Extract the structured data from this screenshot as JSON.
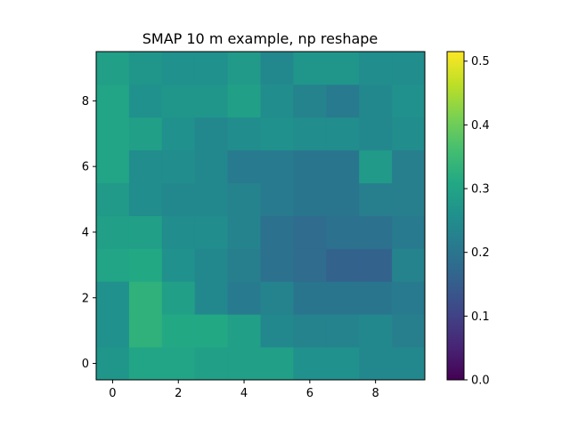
{
  "chart_data": {
    "type": "heatmap",
    "title": "SMAP 10 m example, np reshape",
    "xlabel": "",
    "ylabel": "",
    "origin": "lower",
    "xlim": [
      -0.5,
      9.5
    ],
    "ylim": [
      -0.5,
      9.5
    ],
    "x_ticks": [
      0,
      2,
      4,
      6,
      8
    ],
    "y_ticks": [
      0,
      2,
      4,
      6,
      8
    ],
    "colormap": "viridis",
    "colorbar": {
      "vmin": 0.0,
      "vmax": 0.515,
      "ticks": [
        0.0,
        0.1,
        0.2,
        0.3,
        0.4,
        0.5
      ],
      "tick_labels": [
        "0.0",
        "0.1",
        "0.2",
        "0.3",
        "0.4",
        "0.5"
      ]
    },
    "values": [
      [
        0.27,
        0.3,
        0.3,
        0.29,
        0.29,
        0.29,
        0.26,
        0.26,
        0.24,
        0.24
      ],
      [
        0.26,
        0.33,
        0.31,
        0.31,
        0.29,
        0.24,
        0.23,
        0.23,
        0.24,
        0.22
      ],
      [
        0.26,
        0.33,
        0.29,
        0.24,
        0.21,
        0.23,
        0.2,
        0.2,
        0.2,
        0.21
      ],
      [
        0.3,
        0.31,
        0.26,
        0.24,
        0.22,
        0.19,
        0.18,
        0.16,
        0.16,
        0.23
      ],
      [
        0.29,
        0.29,
        0.25,
        0.25,
        0.23,
        0.19,
        0.18,
        0.19,
        0.19,
        0.21
      ],
      [
        0.28,
        0.25,
        0.24,
        0.24,
        0.23,
        0.21,
        0.2,
        0.2,
        0.22,
        0.22
      ],
      [
        0.3,
        0.25,
        0.25,
        0.24,
        0.21,
        0.21,
        0.2,
        0.2,
        0.28,
        0.22
      ],
      [
        0.3,
        0.29,
        0.26,
        0.24,
        0.25,
        0.26,
        0.25,
        0.25,
        0.24,
        0.25
      ],
      [
        0.3,
        0.26,
        0.27,
        0.27,
        0.29,
        0.25,
        0.23,
        0.21,
        0.24,
        0.26
      ],
      [
        0.29,
        0.27,
        0.26,
        0.26,
        0.28,
        0.24,
        0.27,
        0.27,
        0.25,
        0.25
      ]
    ]
  }
}
